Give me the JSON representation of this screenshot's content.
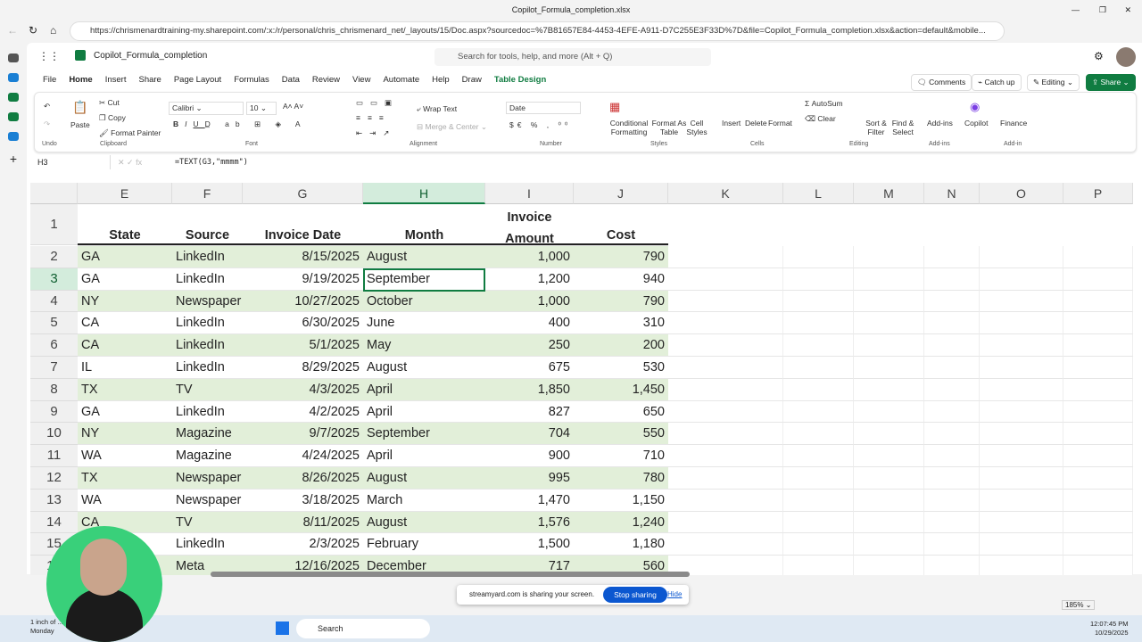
{
  "browser": {
    "title": "Copilot_Formula_completion.xlsx",
    "url": "https://chrismenardtraining-my.sharepoint.com/:x:/r/personal/chris_chrismenard_net/_layouts/15/Doc.aspx?sourcedoc=%7B81657E84-4453-4EFE-A911-D7C255E3F33D%7D&file=Copilot_Formula_completion.xlsx&action=default&mobile..."
  },
  "app": {
    "doc_name": "Copilot_Formula_completion",
    "search_placeholder": "Search for tools, help, and more (Alt + Q)"
  },
  "tabs": [
    "File",
    "Home",
    "Insert",
    "Share",
    "Page Layout",
    "Formulas",
    "Data",
    "Review",
    "View",
    "Automate",
    "Help",
    "Draw",
    "Table Design"
  ],
  "actions": {
    "comments": "Comments",
    "catch_up": "Catch up",
    "editing": "Editing",
    "share": "Share"
  },
  "ribbon": {
    "undo_group": "Undo",
    "paste": "Paste",
    "cut": "Cut",
    "copy": "Copy",
    "format_painter": "Format Painter",
    "clipboard_group": "Clipboard",
    "font_name": "Calibri",
    "font_size": "10",
    "font_group": "Font",
    "wrap_text": "Wrap Text",
    "merge_center": "Merge & Center",
    "alignment_group": "Alignment",
    "number_format": "Date",
    "number_group": "Number",
    "conditional_formatting": "Conditional Formatting",
    "format_as_table": "Format As Table",
    "cell_styles": "Cell Styles",
    "styles_group": "Styles",
    "insert": "Insert",
    "delete": "Delete",
    "format": "Format",
    "cells_group": "Cells",
    "autosum": "AutoSum",
    "clear": "Clear",
    "sort_filter": "Sort & Filter",
    "find_select": "Find & Select",
    "editing_group": "Editing",
    "addins": "Add-ins",
    "addins_group": "Add-ins",
    "copilot": "Copilot",
    "finance": "Finance",
    "addin_group": "Add-in"
  },
  "formula_bar": {
    "name_box": "H3",
    "formula": "=TEXT(G3,\"mmmm\")"
  },
  "columns": [
    "E",
    "F",
    "G",
    "H",
    "I",
    "J",
    "K",
    "L",
    "M",
    "N",
    "O",
    "P"
  ],
  "selected_column": "H",
  "selected_row": "3",
  "header_row": {
    "row": "1",
    "state": "State",
    "source": "Source",
    "invoice_date": "Invoice Date",
    "month": "Month",
    "invoice_amount_1": "Invoice",
    "invoice_amount_2": "Amount",
    "cost": "Cost"
  },
  "rows": [
    {
      "row": "2",
      "state": "GA",
      "source": "LinkedIn",
      "date": "8/15/2025",
      "month": "August",
      "amount": "1,000",
      "cost": "790"
    },
    {
      "row": "3",
      "state": "GA",
      "source": "LinkedIn",
      "date": "9/19/2025",
      "month": "September",
      "amount": "1,200",
      "cost": "940"
    },
    {
      "row": "4",
      "state": "NY",
      "source": "Newspaper",
      "date": "10/27/2025",
      "month": "October",
      "amount": "1,000",
      "cost": "790"
    },
    {
      "row": "5",
      "state": "CA",
      "source": "LinkedIn",
      "date": "6/30/2025",
      "month": "June",
      "amount": "400",
      "cost": "310"
    },
    {
      "row": "6",
      "state": "CA",
      "source": "LinkedIn",
      "date": "5/1/2025",
      "month": "May",
      "amount": "250",
      "cost": "200"
    },
    {
      "row": "7",
      "state": "IL",
      "source": "LinkedIn",
      "date": "8/29/2025",
      "month": "August",
      "amount": "675",
      "cost": "530"
    },
    {
      "row": "8",
      "state": "TX",
      "source": "TV",
      "date": "4/3/2025",
      "month": "April",
      "amount": "1,850",
      "cost": "1,450"
    },
    {
      "row": "9",
      "state": "GA",
      "source": "LinkedIn",
      "date": "4/2/2025",
      "month": "April",
      "amount": "827",
      "cost": "650"
    },
    {
      "row": "10",
      "state": "NY",
      "source": "Magazine",
      "date": "9/7/2025",
      "month": "September",
      "amount": "704",
      "cost": "550"
    },
    {
      "row": "11",
      "state": "WA",
      "source": "Magazine",
      "date": "4/24/2025",
      "month": "April",
      "amount": "900",
      "cost": "710"
    },
    {
      "row": "12",
      "state": "TX",
      "source": "Newspaper",
      "date": "8/26/2025",
      "month": "August",
      "amount": "995",
      "cost": "780"
    },
    {
      "row": "13",
      "state": "WA",
      "source": "Newspaper",
      "date": "3/18/2025",
      "month": "March",
      "amount": "1,470",
      "cost": "1,150"
    },
    {
      "row": "14",
      "state": "CA",
      "source": "TV",
      "date": "8/11/2025",
      "month": "August",
      "amount": "1,576",
      "cost": "1,240"
    },
    {
      "row": "15",
      "state": "",
      "source": "LinkedIn",
      "date": "2/3/2025",
      "month": "February",
      "amount": "1,500",
      "cost": "1,180"
    },
    {
      "row": "16",
      "state": "",
      "source": "Meta",
      "date": "12/16/2025",
      "month": "December",
      "amount": "717",
      "cost": "560"
    }
  ],
  "status": {
    "zoom": "185%"
  },
  "screen_share": {
    "message": "streamyard.com is sharing your screen.",
    "stop": "Stop sharing",
    "hide": "Hide"
  },
  "taskbar": {
    "search": "Search",
    "weather": "1 inch of ...",
    "weather_day": "Monday",
    "time": "12:07:45 PM",
    "date": "10/29/2025"
  },
  "colors": {
    "accent": "#107c41",
    "band": "#e2efd9",
    "stop_button": "#0b57d0"
  }
}
